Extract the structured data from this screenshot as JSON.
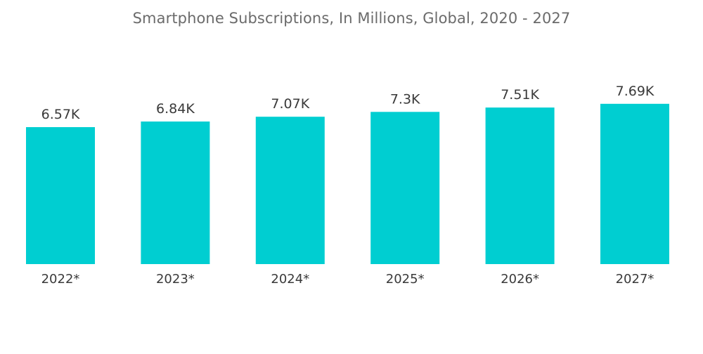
{
  "chart_data": {
    "type": "bar",
    "title": "Smartphone Subscriptions, In Millions, Global, 2020 - 2027",
    "xlabel": "",
    "ylabel": "",
    "categories": [
      "2022*",
      "2023*",
      "2024*",
      "2025*",
      "2026*",
      "2027*"
    ],
    "values": [
      6570,
      6840,
      7070,
      7300,
      7510,
      7690
    ],
    "value_labels": [
      "6.57K",
      "6.84K",
      "7.07K",
      "7.3K",
      "7.51K",
      "7.69K"
    ],
    "ylim": [
      0,
      10000
    ],
    "grid": false,
    "legend": "none",
    "bar_color": "#00CED1"
  }
}
